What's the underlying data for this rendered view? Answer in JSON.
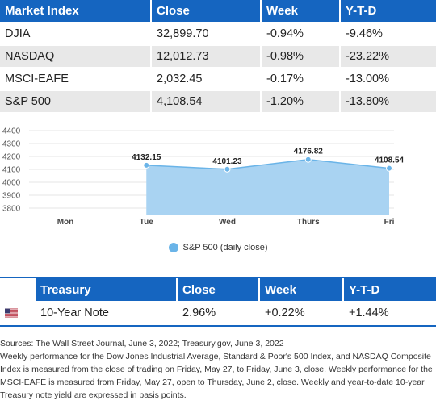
{
  "market_table": {
    "headers": [
      "Market Index",
      "Close",
      "Week",
      "Y-T-D"
    ],
    "rows": [
      [
        "DJIA",
        "32,899.70",
        "-0.94%",
        "-9.46%"
      ],
      [
        "NASDAQ",
        "12,012.73",
        "-0.98%",
        "-23.22%"
      ],
      [
        "MSCI-EAFE",
        "2,032.45",
        "-0.17%",
        "-13.00%"
      ],
      [
        "S&P 500",
        "4,108.54",
        "-1.20%",
        "-13.80%"
      ]
    ]
  },
  "chart_data": {
    "type": "area",
    "categories": [
      "Mon",
      "Tue",
      "Wed",
      "Thurs",
      "Fri"
    ],
    "series": [
      {
        "name": "S&P 500 (daily close)",
        "values": [
          null,
          4132.15,
          4101.23,
          4176.82,
          4108.54
        ]
      }
    ],
    "data_labels": [
      "",
      "4132.15",
      "4101.23",
      "4176.82",
      "4108.54"
    ],
    "y_ticks": [
      3800,
      3900,
      4000,
      4100,
      4200,
      4300,
      4400
    ],
    "ylim": [
      3750,
      4400
    ],
    "grid": true,
    "legend_position": "bottom",
    "color": "#6ab4e8",
    "fill_color": "#a9d3f2"
  },
  "treasury_table": {
    "headers": [
      "Treasury",
      "Close",
      "Week",
      "Y-T-D"
    ],
    "rows": [
      {
        "flag": "us-flag-icon",
        "name": "10-Year Note",
        "close": "2.96%",
        "week": "+0.22%",
        "ytd": "+1.44%"
      }
    ]
  },
  "notes": {
    "sources": "Sources: The Wall Street Journal, June 3, 2022; Treasury.gov, June 3, 2022",
    "methodology": "Weekly performance for the Dow Jones Industrial Average, Standard & Poor's 500 Index, and NASDAQ Composite Index is measured from the close of trading on Friday, May 27, to Friday, June 3, close. Weekly performance for the MSCI-EAFE is measured from Friday, May 27, open to Thursday, June 2, close. Weekly and year-to-date 10-year Treasury note yield are expressed in basis points."
  }
}
